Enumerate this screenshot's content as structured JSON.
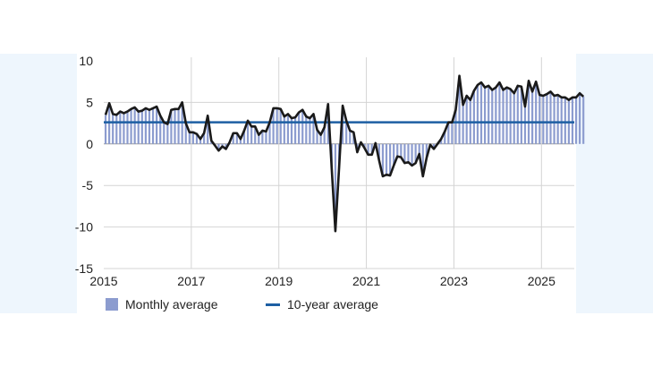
{
  "chart_data": {
    "type": "bar+line",
    "title": "",
    "xlabel": "",
    "ylabel": "",
    "x_start": 2015.0,
    "x_step_months": 1,
    "xlim": [
      2015,
      2025.75
    ],
    "ylim": [
      -15,
      10
    ],
    "grid": true,
    "x_ticks": [
      "2015",
      "2017",
      "2019",
      "2021",
      "2023",
      "2025"
    ],
    "x_tick_values": [
      2015,
      2017,
      2019,
      2021,
      2023,
      2025
    ],
    "y_ticks": [
      "10",
      "5",
      "0",
      "-5",
      "-10",
      "-15"
    ],
    "y_tick_values": [
      10,
      5,
      0,
      -5,
      -10,
      -15
    ],
    "legend_position": "bottom",
    "series": [
      {
        "name": "Monthly average",
        "kind": "bar+line",
        "bar_color": "#8c9ccf",
        "line_color": "#1a1a1a",
        "values": [
          3.5,
          4.9,
          3.6,
          3.5,
          3.9,
          3.7,
          3.9,
          4.2,
          4.4,
          3.9,
          4.0,
          4.3,
          4.1,
          4.3,
          4.5,
          3.4,
          2.6,
          2.4,
          4.1,
          4.2,
          4.2,
          5.0,
          2.5,
          1.4,
          1.4,
          1.2,
          0.6,
          1.3,
          3.4,
          0.4,
          -0.2,
          -0.8,
          -0.3,
          -0.6,
          0.2,
          1.3,
          1.3,
          0.6,
          1.6,
          2.8,
          2.1,
          2.1,
          1.1,
          1.6,
          1.5,
          2.6,
          4.3,
          4.3,
          4.2,
          3.3,
          3.6,
          3.1,
          3.2,
          3.8,
          4.1,
          3.3,
          3.1,
          3.6,
          1.7,
          1.1,
          2.0,
          4.8,
          -3.0,
          -10.5,
          -3.0,
          4.6,
          2.8,
          1.6,
          1.4,
          -1.0,
          0.2,
          -0.5,
          -1.3,
          -1.3,
          0.1,
          -2.0,
          -3.9,
          -3.7,
          -3.8,
          -2.6,
          -1.5,
          -1.6,
          -2.3,
          -2.2,
          -2.6,
          -2.3,
          -1.2,
          -3.9,
          -1.7,
          -0.1,
          -0.6,
          0.0,
          0.6,
          1.5,
          2.6,
          2.6,
          4.1,
          8.2,
          4.7,
          5.8,
          5.3,
          6.4,
          7.1,
          7.4,
          6.8,
          7.0,
          6.5,
          6.8,
          7.4,
          6.5,
          6.8,
          6.6,
          6.1,
          7.0,
          6.9,
          4.5,
          7.6,
          6.3,
          7.5,
          5.9,
          5.8,
          6.0,
          6.3,
          5.8,
          5.9,
          5.6,
          5.6,
          5.3,
          5.6,
          5.6,
          6.1,
          5.7
        ]
      },
      {
        "name": "10-year average",
        "kind": "horizontal-line",
        "color": "#1d5fa3",
        "value": 2.6
      }
    ]
  },
  "legend": {
    "monthly_label": "Monthly average",
    "ten_year_label": "10-year average"
  }
}
